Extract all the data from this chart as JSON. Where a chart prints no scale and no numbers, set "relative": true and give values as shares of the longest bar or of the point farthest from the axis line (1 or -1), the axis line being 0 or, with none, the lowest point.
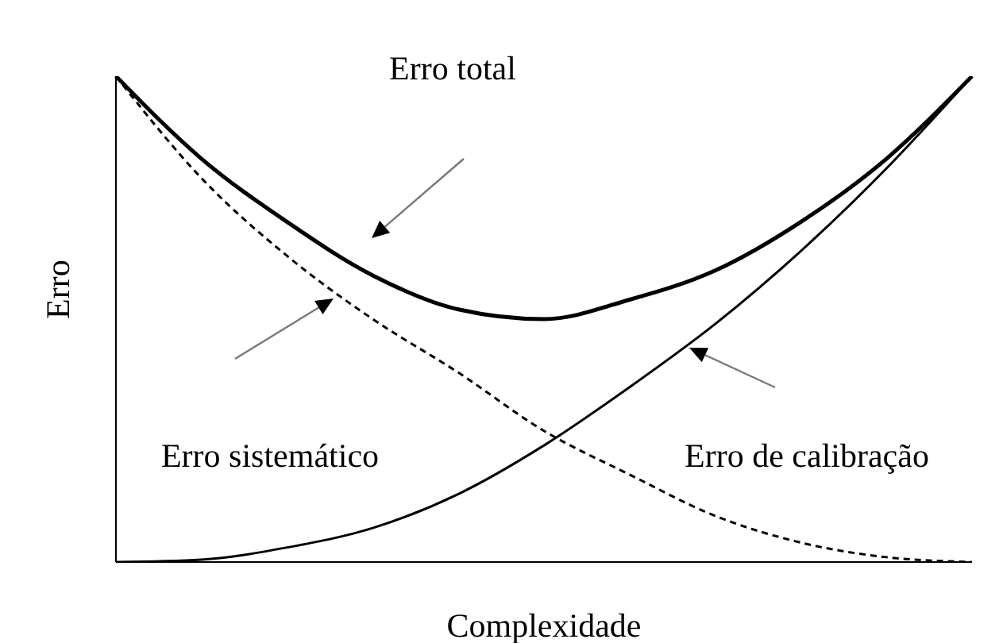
{
  "chart_data": {
    "type": "line",
    "relative": true,
    "xlabel": "Complexidade",
    "ylabel": "Erro",
    "legend": false,
    "marker": "none",
    "grid": false,
    "categories": [
      null,
      null,
      null,
      null,
      null,
      null,
      null,
      null,
      null,
      null,
      null
    ],
    "annotations": [
      "Erro total",
      "Erro sistemático",
      "Erro de calibração"
    ],
    "series": [
      {
        "color": "#000000",
        "line_style": "solid",
        "values": [
          1.0,
          0.83,
          0.7,
          0.59,
          0.52,
          0.5,
          0.54,
          0.6,
          0.7,
          0.83,
          1.0
        ]
      },
      {
        "color": "#000000",
        "line_style": "dashed",
        "values": [
          1.0,
          0.79,
          0.63,
          0.5,
          0.39,
          0.27,
          0.18,
          0.095,
          0.04,
          0.01,
          0.0
        ]
      },
      {
        "color": "#000000",
        "line_style": "solid",
        "values": [
          0.0,
          0.005,
          0.03,
          0.07,
          0.14,
          0.24,
          0.36,
          0.49,
          0.64,
          0.81,
          1.0
        ]
      }
    ]
  }
}
